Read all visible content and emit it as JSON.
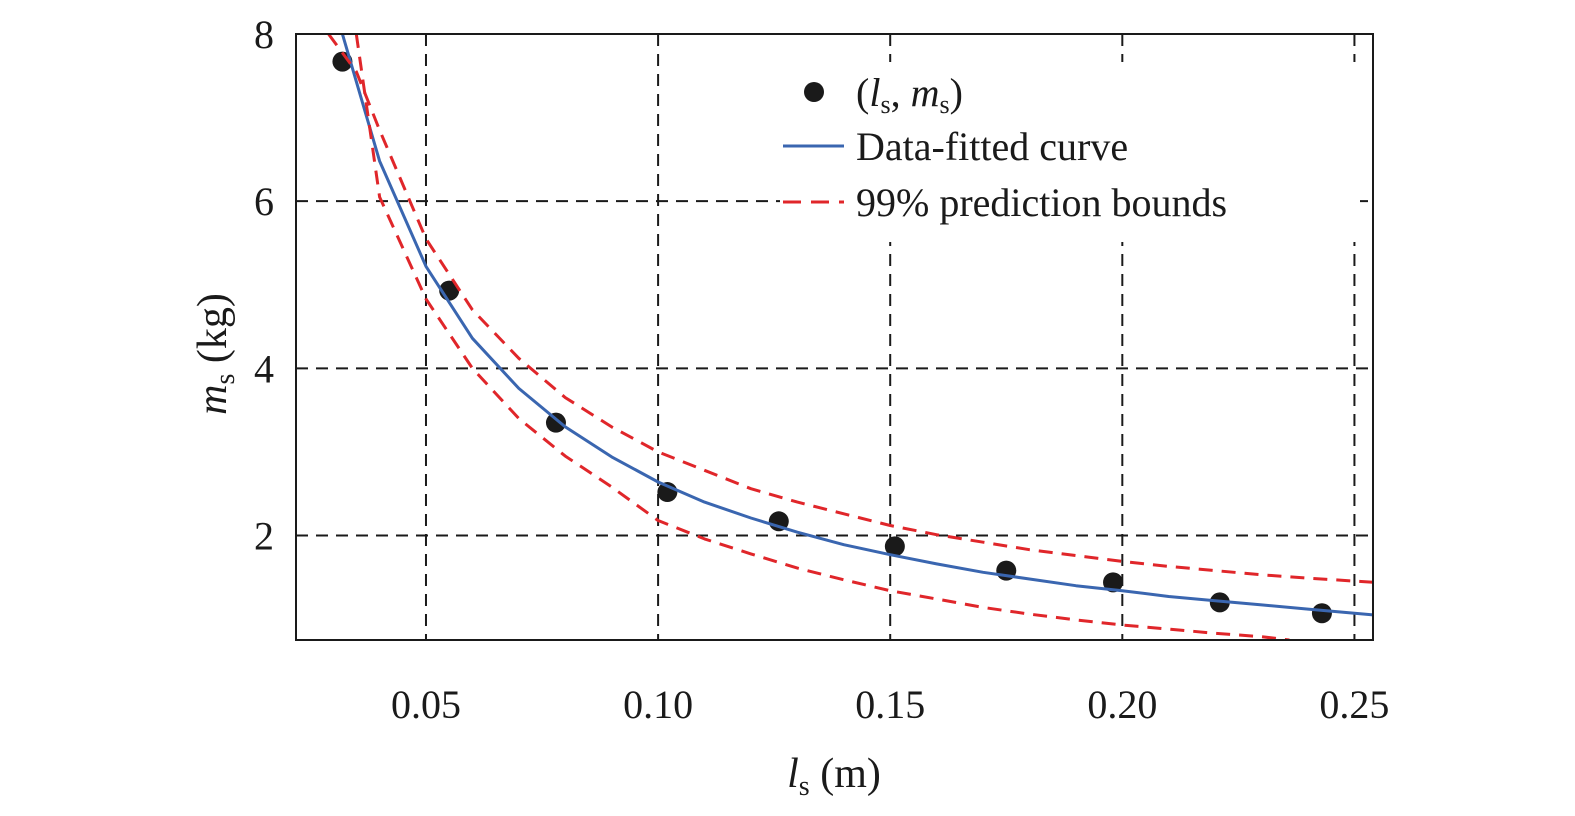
{
  "chart_data": {
    "type": "scatter",
    "xlabel": {
      "main": "l",
      "sub": "s",
      "unit": " (m)"
    },
    "ylabel": {
      "main": "m",
      "sub": "s",
      "unit": " (kg)"
    },
    "xlim": [
      0.022,
      0.254
    ],
    "ylim": [
      0.75,
      8.0
    ],
    "x_ticks": [
      {
        "value": 0.05,
        "label": "0.05"
      },
      {
        "value": 0.1,
        "label": "0.10"
      },
      {
        "value": 0.15,
        "label": "0.15"
      },
      {
        "value": 0.2,
        "label": "0.20"
      },
      {
        "value": 0.25,
        "label": "0.25"
      }
    ],
    "y_ticks": [
      {
        "value": 2,
        "label": "2"
      },
      {
        "value": 4,
        "label": "4"
      },
      {
        "value": 6,
        "label": "6"
      },
      {
        "value": 8,
        "label": "8"
      }
    ],
    "grid": true,
    "legend_position": "top-right",
    "series": [
      {
        "name": "(ls, ms)",
        "legend": {
          "p1": "(",
          "v1": "l",
          "s1": "s",
          "p2": ", ",
          "v2": "m",
          "s2": "s",
          "p3": ")"
        },
        "kind": "points",
        "color": "#1a1a1a",
        "x": [
          0.032,
          0.055,
          0.078,
          0.102,
          0.126,
          0.151,
          0.175,
          0.198,
          0.221,
          0.243
        ],
        "y": [
          7.67,
          4.93,
          3.35,
          2.52,
          2.17,
          1.87,
          1.58,
          1.44,
          1.2,
          1.07
        ]
      },
      {
        "name": "Data-fitted curve",
        "kind": "line",
        "color": "#3a66b0",
        "x": [
          0.032,
          0.04,
          0.05,
          0.06,
          0.07,
          0.08,
          0.09,
          0.1,
          0.11,
          0.12,
          0.13,
          0.14,
          0.15,
          0.16,
          0.17,
          0.18,
          0.19,
          0.2,
          0.21,
          0.22,
          0.23,
          0.24,
          0.254
        ],
        "y": [
          8.0,
          6.48,
          5.22,
          4.36,
          3.76,
          3.3,
          2.94,
          2.64,
          2.4,
          2.21,
          2.04,
          1.89,
          1.77,
          1.66,
          1.56,
          1.48,
          1.4,
          1.34,
          1.27,
          1.22,
          1.17,
          1.12,
          1.05
        ]
      },
      {
        "name": "99% prediction bounds",
        "kind": "dashed",
        "color": "#e0262a",
        "x": [
          0.029,
          0.035,
          0.04,
          0.05,
          0.06,
          0.07,
          0.08,
          0.09,
          0.1,
          0.11,
          0.12,
          0.13,
          0.14,
          0.15,
          0.16,
          0.17,
          0.18,
          0.19,
          0.2,
          0.21,
          0.22,
          0.23,
          0.24,
          0.254
        ],
        "y": [
          8.0,
          7.55,
          6.85,
          5.55,
          4.7,
          4.12,
          3.65,
          3.3,
          3.0,
          2.78,
          2.56,
          2.4,
          2.26,
          2.12,
          2.01,
          1.92,
          1.83,
          1.76,
          1.69,
          1.63,
          1.58,
          1.53,
          1.49,
          1.44
        ]
      },
      {
        "kind": "dashed",
        "color": "#e0262a",
        "x": [
          0.035,
          0.04,
          0.05,
          0.06,
          0.07,
          0.08,
          0.09,
          0.1,
          0.11,
          0.12,
          0.13,
          0.14,
          0.15,
          0.16,
          0.17,
          0.18,
          0.19,
          0.2,
          0.21,
          0.22,
          0.23,
          0.236
        ],
        "y": [
          8.0,
          6.05,
          4.83,
          4.0,
          3.4,
          2.95,
          2.58,
          2.18,
          1.96,
          1.78,
          1.61,
          1.47,
          1.34,
          1.24,
          1.14,
          1.06,
          0.99,
          0.93,
          0.88,
          0.83,
          0.79,
          0.75
        ]
      }
    ]
  }
}
